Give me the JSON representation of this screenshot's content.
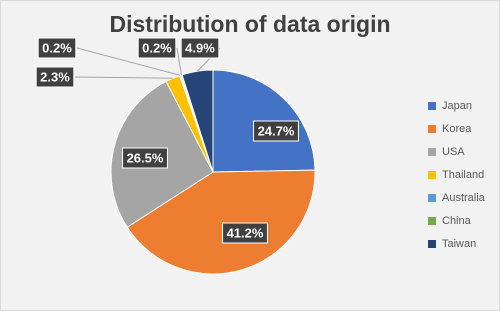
{
  "chart_data": {
    "type": "pie",
    "title": "Distribution of data origin",
    "categories": [
      "Japan",
      "Korea",
      "USA",
      "Thailand",
      "Australia",
      "China",
      "Taiwan"
    ],
    "values": [
      24.7,
      41.2,
      26.5,
      2.3,
      0.2,
      0.2,
      4.9
    ],
    "value_labels": [
      "24.7%",
      "41.2%",
      "26.5%",
      "2.3%",
      "0.2%",
      "0.2%",
      "4.9%"
    ],
    "colors": [
      "#4472c4",
      "#ed7d31",
      "#a5a5a5",
      "#ffc000",
      "#5b9bd5",
      "#70ad47",
      "#264478"
    ],
    "legend": "right"
  }
}
